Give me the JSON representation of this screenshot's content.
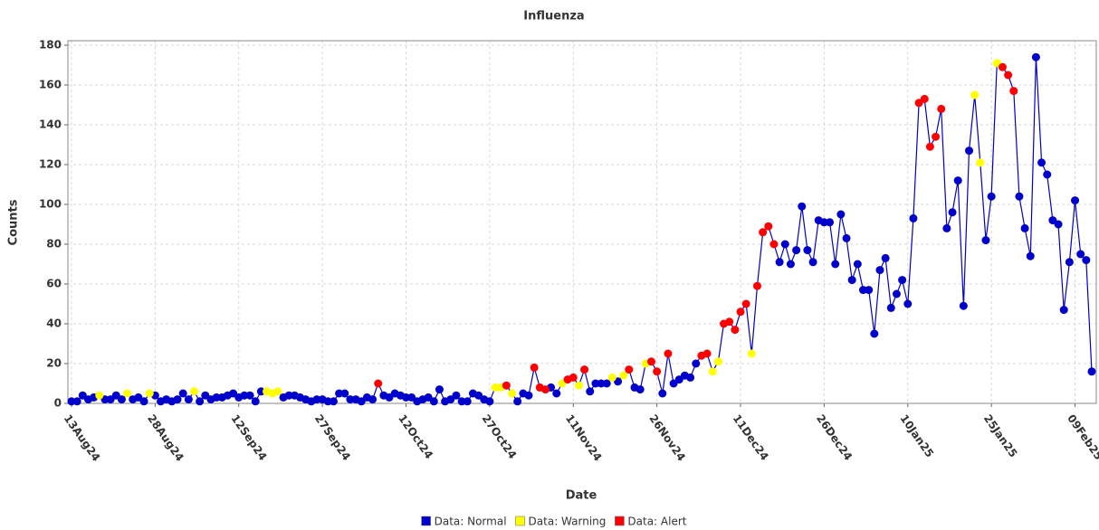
{
  "chart_data": {
    "type": "line",
    "title": "Influenza",
    "x_label": "Date",
    "y_label": "Counts",
    "x": [
      "2024-08-13",
      "2024-08-14",
      "2024-08-15",
      "2024-08-16",
      "2024-08-17",
      "2024-08-18",
      "2024-08-19",
      "2024-08-20",
      "2024-08-21",
      "2024-08-22",
      "2024-08-23",
      "2024-08-24",
      "2024-08-25",
      "2024-08-26",
      "2024-08-27",
      "2024-08-28",
      "2024-08-29",
      "2024-08-30",
      "2024-08-31",
      "2024-09-01",
      "2024-09-02",
      "2024-09-03",
      "2024-09-04",
      "2024-09-05",
      "2024-09-06",
      "2024-09-07",
      "2024-09-08",
      "2024-09-09",
      "2024-09-10",
      "2024-09-11",
      "2024-09-12",
      "2024-09-13",
      "2024-09-14",
      "2024-09-15",
      "2024-09-16",
      "2024-09-17",
      "2024-09-18",
      "2024-09-19",
      "2024-09-20",
      "2024-09-21",
      "2024-09-22",
      "2024-09-23",
      "2024-09-24",
      "2024-09-25",
      "2024-09-26",
      "2024-09-27",
      "2024-09-28",
      "2024-09-29",
      "2024-09-30",
      "2024-10-01",
      "2024-10-02",
      "2024-10-03",
      "2024-10-04",
      "2024-10-05",
      "2024-10-06",
      "2024-10-07",
      "2024-10-08",
      "2024-10-09",
      "2024-10-10",
      "2024-10-11",
      "2024-10-12",
      "2024-10-13",
      "2024-10-14",
      "2024-10-15",
      "2024-10-16",
      "2024-10-17",
      "2024-10-18",
      "2024-10-19",
      "2024-10-20",
      "2024-10-21",
      "2024-10-22",
      "2024-10-23",
      "2024-10-24",
      "2024-10-25",
      "2024-10-26",
      "2024-10-27",
      "2024-10-28",
      "2024-10-29",
      "2024-10-30",
      "2024-10-31",
      "2024-11-01",
      "2024-11-02",
      "2024-11-03",
      "2024-11-04",
      "2024-11-05",
      "2024-11-06",
      "2024-11-07",
      "2024-11-08",
      "2024-11-09",
      "2024-11-10",
      "2024-11-11",
      "2024-11-12",
      "2024-11-13",
      "2024-11-14",
      "2024-11-15",
      "2024-11-16",
      "2024-11-17",
      "2024-11-18",
      "2024-11-19",
      "2024-11-20",
      "2024-11-21",
      "2024-11-22",
      "2024-11-23",
      "2024-11-24",
      "2024-11-25",
      "2024-11-26",
      "2024-11-27",
      "2024-11-28",
      "2024-11-29",
      "2024-11-30",
      "2024-12-01",
      "2024-12-02",
      "2024-12-03",
      "2024-12-04",
      "2024-12-05",
      "2024-12-06",
      "2024-12-07",
      "2024-12-08",
      "2024-12-09",
      "2024-12-10",
      "2024-12-11",
      "2024-12-12",
      "2024-12-13",
      "2024-12-14",
      "2024-12-15",
      "2024-12-16",
      "2024-12-17",
      "2024-12-18",
      "2024-12-19",
      "2024-12-20",
      "2024-12-21",
      "2024-12-22",
      "2024-12-23",
      "2024-12-24",
      "2024-12-25",
      "2024-12-26",
      "2024-12-27",
      "2024-12-28",
      "2024-12-29",
      "2024-12-30",
      "2024-12-31",
      "2025-01-01",
      "2025-01-02",
      "2025-01-03",
      "2025-01-04",
      "2025-01-05",
      "2025-01-06",
      "2025-01-07",
      "2025-01-08",
      "2025-01-09",
      "2025-01-10",
      "2025-01-11",
      "2025-01-12",
      "2025-01-13",
      "2025-01-14",
      "2025-01-15",
      "2025-01-16",
      "2025-01-17",
      "2025-01-18",
      "2025-01-19",
      "2025-01-20",
      "2025-01-21",
      "2025-01-22",
      "2025-01-23",
      "2025-01-24",
      "2025-01-25",
      "2025-01-26",
      "2025-01-27",
      "2025-01-28",
      "2025-01-29",
      "2025-01-30",
      "2025-01-31",
      "2025-02-01",
      "2025-02-02",
      "2025-02-03",
      "2025-02-04",
      "2025-02-05",
      "2025-02-06",
      "2025-02-07",
      "2025-02-08",
      "2025-02-09",
      "2025-02-10",
      "2025-02-11",
      "2025-02-12"
    ],
    "series": [
      {
        "name": "Data: Normal",
        "color": "#0000cc",
        "values": [
          1,
          1,
          4,
          2,
          3,
          null,
          2,
          2,
          4,
          2,
          null,
          2,
          3,
          1,
          null,
          4,
          1,
          2,
          1,
          2,
          5,
          2,
          null,
          1,
          4,
          2,
          3,
          3,
          4,
          5,
          3,
          4,
          4,
          1,
          6,
          null,
          null,
          null,
          3,
          4,
          4,
          3,
          2,
          1,
          2,
          2,
          1,
          1,
          5,
          5,
          2,
          2,
          1,
          3,
          2,
          null,
          4,
          3,
          5,
          4,
          3,
          3,
          1,
          2,
          3,
          1,
          7,
          1,
          2,
          4,
          1,
          1,
          5,
          4,
          2,
          1,
          null,
          null,
          null,
          null,
          1,
          5,
          4,
          null,
          null,
          null,
          8,
          5,
          null,
          null,
          null,
          null,
          null,
          6,
          10,
          10,
          10,
          null,
          11,
          null,
          null,
          8,
          7,
          null,
          null,
          null,
          5,
          null,
          10,
          12,
          14,
          13,
          20,
          null,
          null,
          null,
          null,
          null,
          null,
          null,
          null,
          null,
          null,
          null,
          null,
          null,
          null,
          71,
          80,
          70,
          77,
          99,
          77,
          71,
          92,
          91,
          91,
          70,
          95,
          83,
          62,
          70,
          57,
          57,
          35,
          67,
          73,
          48,
          55,
          62,
          50,
          93,
          null,
          null,
          null,
          null,
          null,
          88,
          96,
          112,
          49,
          127,
          null,
          null,
          82,
          104,
          null,
          null,
          null,
          null,
          104,
          88,
          74,
          174,
          121,
          115,
          92,
          90,
          47,
          71,
          102,
          75,
          72,
          16
        ]
      },
      {
        "name": "Data: Warning",
        "color": "#ffff00",
        "values": [
          null,
          null,
          null,
          null,
          null,
          4,
          null,
          null,
          null,
          null,
          5,
          null,
          null,
          null,
          5,
          null,
          null,
          null,
          null,
          null,
          null,
          null,
          6,
          null,
          null,
          null,
          null,
          null,
          null,
          null,
          null,
          null,
          null,
          null,
          null,
          6,
          5,
          6,
          null,
          null,
          null,
          null,
          null,
          null,
          null,
          null,
          null,
          null,
          null,
          null,
          null,
          null,
          null,
          null,
          null,
          null,
          null,
          null,
          null,
          null,
          null,
          null,
          null,
          null,
          null,
          null,
          null,
          null,
          null,
          null,
          null,
          null,
          null,
          null,
          null,
          null,
          8,
          8,
          null,
          5,
          null,
          null,
          null,
          null,
          null,
          null,
          null,
          null,
          10,
          null,
          null,
          9,
          null,
          null,
          null,
          null,
          null,
          13,
          null,
          14,
          null,
          null,
          null,
          20,
          null,
          null,
          null,
          null,
          null,
          null,
          null,
          null,
          null,
          null,
          null,
          16,
          21,
          null,
          null,
          null,
          null,
          null,
          25,
          null,
          null,
          null,
          null,
          null,
          null,
          null,
          null,
          null,
          null,
          null,
          null,
          null,
          null,
          null,
          null,
          null,
          null,
          null,
          null,
          null,
          null,
          null,
          null,
          null,
          null,
          null,
          null,
          null,
          null,
          null,
          null,
          null,
          null,
          null,
          null,
          null,
          null,
          null,
          155,
          121,
          null,
          null,
          171,
          null,
          null,
          null,
          null,
          null,
          null,
          null,
          null,
          null,
          null,
          null,
          null,
          null,
          null,
          null,
          null,
          null
        ]
      },
      {
        "name": "Data: Alert",
        "color": "#ff0000",
        "values": [
          null,
          null,
          null,
          null,
          null,
          null,
          null,
          null,
          null,
          null,
          null,
          null,
          null,
          null,
          null,
          null,
          null,
          null,
          null,
          null,
          null,
          null,
          null,
          null,
          null,
          null,
          null,
          null,
          null,
          null,
          null,
          null,
          null,
          null,
          null,
          null,
          null,
          null,
          null,
          null,
          null,
          null,
          null,
          null,
          null,
          null,
          null,
          null,
          null,
          null,
          null,
          null,
          null,
          null,
          null,
          10,
          null,
          null,
          null,
          null,
          null,
          null,
          null,
          null,
          null,
          null,
          null,
          null,
          null,
          null,
          null,
          null,
          null,
          null,
          null,
          null,
          null,
          null,
          9,
          null,
          null,
          null,
          null,
          18,
          8,
          7,
          null,
          null,
          null,
          12,
          13,
          null,
          17,
          null,
          null,
          null,
          null,
          null,
          null,
          null,
          17,
          null,
          null,
          null,
          21,
          16,
          null,
          25,
          null,
          null,
          null,
          null,
          null,
          24,
          25,
          null,
          null,
          40,
          41,
          37,
          46,
          50,
          null,
          59,
          86,
          89,
          80,
          null,
          null,
          null,
          null,
          null,
          null,
          null,
          null,
          null,
          null,
          null,
          null,
          null,
          null,
          null,
          null,
          null,
          null,
          null,
          null,
          null,
          null,
          null,
          null,
          null,
          151,
          153,
          129,
          134,
          148,
          null,
          null,
          null,
          null,
          null,
          null,
          null,
          null,
          null,
          null,
          169,
          165,
          157,
          null,
          null,
          null,
          null,
          null,
          null,
          null,
          null,
          null,
          null,
          null,
          null,
          null,
          null
        ]
      }
    ],
    "xlim": [
      "2024-08-13",
      "2025-02-12"
    ],
    "xticks": [
      {
        "value": "2024-08-13",
        "label": "13Aug24"
      },
      {
        "value": "2024-08-28",
        "label": "28Aug24"
      },
      {
        "value": "2024-09-12",
        "label": "12Sep24"
      },
      {
        "value": "2024-09-27",
        "label": "27Sep24"
      },
      {
        "value": "2024-10-12",
        "label": "12Oct24"
      },
      {
        "value": "2024-10-27",
        "label": "27Oct24"
      },
      {
        "value": "2024-11-11",
        "label": "11Nov24"
      },
      {
        "value": "2024-11-26",
        "label": "26Nov24"
      },
      {
        "value": "2024-12-11",
        "label": "11Dec24"
      },
      {
        "value": "2024-12-26",
        "label": "26Dec24"
      },
      {
        "value": "2025-01-10",
        "label": "10Jan25"
      },
      {
        "value": "2025-01-25",
        "label": "25Jan25"
      },
      {
        "value": "2025-02-09",
        "label": "09Feb25"
      }
    ],
    "ylim": [
      0,
      180
    ],
    "yticks": [
      0,
      20,
      40,
      60,
      80,
      100,
      120,
      140,
      160,
      180
    ],
    "grid": true,
    "legend": "bottom"
  }
}
